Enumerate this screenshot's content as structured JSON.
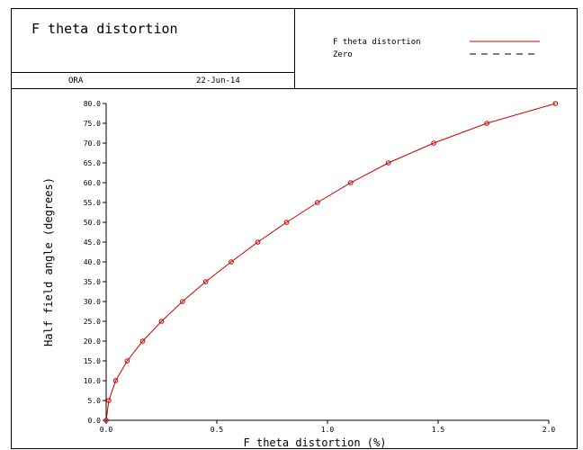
{
  "header": {
    "title": "F theta distortion",
    "organization": "ORA",
    "date": "22-Jun-14"
  },
  "chart_data": {
    "type": "line",
    "title": "F theta distortion",
    "xlabel": "F theta distortion (%)",
    "ylabel": "Half field angle (degrees)",
    "xlim": [
      0.0,
      2.0
    ],
    "ylim": [
      0.0,
      80.0
    ],
    "x_ticks": [
      "0.0",
      "0.5",
      "1.0",
      "1.5",
      "2.0"
    ],
    "y_ticks": [
      "0.0",
      "5.0",
      "10.0",
      "15.0",
      "20.0",
      "25.0",
      "30.0",
      "35.0",
      "40.0",
      "45.0",
      "50.0",
      "55.0",
      "60.0",
      "65.0",
      "70.0",
      "75.0",
      "80.0"
    ],
    "legend_position": "top-right",
    "series": [
      {
        "name": "F theta distortion",
        "color": "#cc0000",
        "style": "solid-with-circle-markers",
        "points": [
          [
            0.0,
            0.0
          ],
          [
            0.012,
            5.0
          ],
          [
            0.043,
            10.0
          ],
          [
            0.095,
            15.0
          ],
          [
            0.165,
            20.0
          ],
          [
            0.25,
            25.0
          ],
          [
            0.345,
            30.0
          ],
          [
            0.45,
            35.0
          ],
          [
            0.565,
            40.0
          ],
          [
            0.685,
            45.0
          ],
          [
            0.815,
            50.0
          ],
          [
            0.955,
            55.0
          ],
          [
            1.105,
            60.0
          ],
          [
            1.275,
            65.0
          ],
          [
            1.48,
            70.0
          ],
          [
            1.72,
            75.0
          ],
          [
            2.03,
            80.0
          ]
        ]
      },
      {
        "name": "Zero",
        "color": "#000000",
        "style": "dashed",
        "points": [
          [
            0.0,
            0.0
          ],
          [
            0.0,
            80.0
          ]
        ]
      }
    ]
  }
}
